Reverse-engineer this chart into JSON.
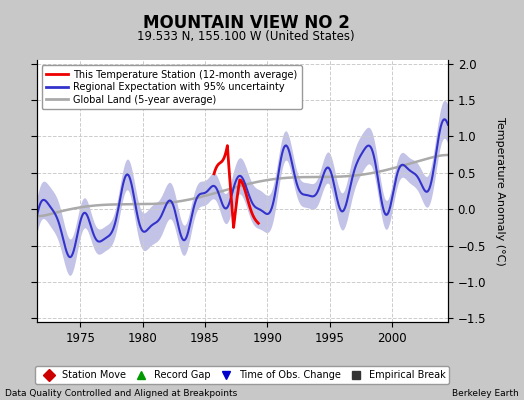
{
  "title": "MOUNTAIN VIEW NO 2",
  "subtitle": "19.533 N, 155.100 W (United States)",
  "ylabel": "Temperature Anomaly (°C)",
  "xlabel_left": "Data Quality Controlled and Aligned at Breakpoints",
  "xlabel_right": "Berkeley Earth",
  "xlim": [
    1971.5,
    2004.5
  ],
  "ylim": [
    -1.55,
    2.05
  ],
  "yticks": [
    -1.5,
    -1.0,
    -0.5,
    0.0,
    0.5,
    1.0,
    1.5,
    2.0
  ],
  "xticks": [
    1975,
    1980,
    1985,
    1990,
    1995,
    2000
  ],
  "fig_bg_color": "#c8c8c8",
  "plot_bg_color": "#ffffff",
  "grid_color": "#cccccc",
  "regional_line_color": "#3333cc",
  "regional_fill_color": "#aaaadd",
  "station_line_color": "#ee0000",
  "global_line_color": "#aaaaaa",
  "legend_items": [
    {
      "label": "This Temperature Station (12-month average)",
      "color": "#ee0000",
      "lw": 2
    },
    {
      "label": "Regional Expectation with 95% uncertainty",
      "color": "#3333cc",
      "lw": 2
    },
    {
      "label": "Global Land (5-year average)",
      "color": "#aaaaaa",
      "lw": 2
    }
  ],
  "bottom_legend": [
    {
      "label": "Station Move",
      "marker": "D",
      "color": "#cc0000"
    },
    {
      "label": "Record Gap",
      "marker": "^",
      "color": "#009900"
    },
    {
      "label": "Time of Obs. Change",
      "marker": "v",
      "color": "#0000cc"
    },
    {
      "label": "Empirical Break",
      "marker": "s",
      "color": "#333333"
    }
  ]
}
